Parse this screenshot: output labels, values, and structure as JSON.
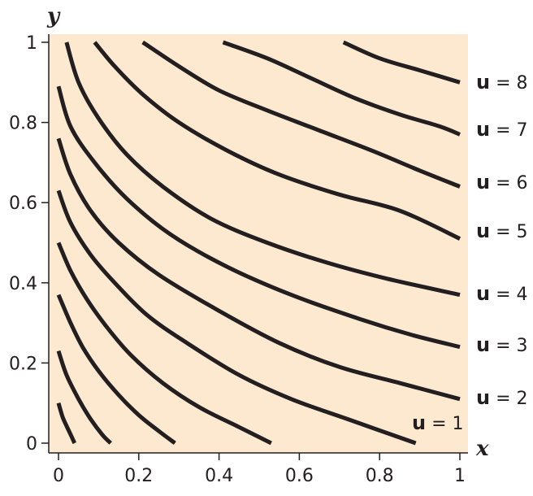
{
  "chart_data": {
    "type": "line",
    "title": "",
    "xlabel": "x",
    "ylabel": "y",
    "xlim": [
      0,
      1
    ],
    "ylim": [
      0,
      1
    ],
    "x_ticks": [
      "0",
      "0.2",
      "0.4",
      "0.6",
      "0.8",
      "1"
    ],
    "y_ticks": [
      "0",
      "0.2",
      "0.4",
      "0.6",
      "0.8",
      "1"
    ],
    "background": "#fde9cf",
    "line_color": "#231f20",
    "grid": false,
    "series": [
      {
        "label_var": "u",
        "label_eq": "= 1",
        "x": [
          0.0,
          0.01,
          0.02,
          0.03,
          0.04
        ],
        "y": [
          0.1,
          0.066,
          0.043,
          0.022,
          0.0
        ]
      },
      {
        "label_var": "u",
        "label_eq": "= 2",
        "x": [
          0.0,
          0.02,
          0.05,
          0.08,
          0.11,
          0.13
        ],
        "y": [
          0.23,
          0.17,
          0.11,
          0.06,
          0.02,
          0.0
        ]
      },
      {
        "label_var": "u",
        "label_eq": "= 3",
        "x": [
          0.0,
          0.03,
          0.06,
          0.1,
          0.15,
          0.2,
          0.25,
          0.29
        ],
        "y": [
          0.37,
          0.3,
          0.24,
          0.18,
          0.12,
          0.07,
          0.03,
          0.0
        ]
      },
      {
        "label_var": "u",
        "label_eq": "= 4",
        "x": [
          0.0,
          0.03,
          0.07,
          0.12,
          0.18,
          0.26,
          0.35,
          0.45,
          0.53
        ],
        "y": [
          0.5,
          0.43,
          0.36,
          0.29,
          0.22,
          0.15,
          0.09,
          0.04,
          0.0
        ]
      },
      {
        "label_var": "u",
        "label_eq": "= 5",
        "x": [
          0.0,
          0.03,
          0.08,
          0.14,
          0.22,
          0.32,
          0.45,
          0.58,
          0.72,
          0.89
        ],
        "y": [
          0.63,
          0.55,
          0.47,
          0.4,
          0.32,
          0.25,
          0.17,
          0.11,
          0.06,
          0.0
        ]
      },
      {
        "label_var": "u",
        "label_eq": "= 6",
        "x": [
          0.0,
          0.03,
          0.08,
          0.15,
          0.25,
          0.4,
          0.55,
          0.7,
          0.85,
          1.0
        ],
        "y": [
          0.76,
          0.67,
          0.58,
          0.5,
          0.42,
          0.33,
          0.25,
          0.19,
          0.15,
          0.11
        ]
      },
      {
        "label_var": "u",
        "label_eq": "= 7",
        "x": [
          0.0,
          0.03,
          0.09,
          0.17,
          0.28,
          0.42,
          0.58,
          0.75,
          0.88,
          1.0
        ],
        "y": [
          0.89,
          0.79,
          0.7,
          0.61,
          0.52,
          0.44,
          0.37,
          0.31,
          0.27,
          0.24
        ]
      },
      {
        "label_var": "u",
        "label_eq": "= 8",
        "x": [
          0.02,
          0.05,
          0.1,
          0.17,
          0.26,
          0.38,
          0.52,
          0.67,
          0.82,
          1.0
        ],
        "y": [
          1.0,
          0.9,
          0.81,
          0.72,
          0.64,
          0.56,
          0.5,
          0.45,
          0.41,
          0.37
        ]
      },
      {
        "x": [
          0.09,
          0.14,
          0.21,
          0.3,
          0.42,
          0.55,
          0.7,
          0.85,
          1.0
        ],
        "y": [
          1.0,
          0.94,
          0.87,
          0.8,
          0.73,
          0.67,
          0.62,
          0.58,
          0.51
        ]
      },
      {
        "x": [
          0.21,
          0.3,
          0.4,
          0.52,
          0.65,
          0.78,
          0.9,
          1.0
        ],
        "y": [
          1.0,
          0.94,
          0.88,
          0.83,
          0.78,
          0.73,
          0.68,
          0.64
        ]
      },
      {
        "x": [
          0.41,
          0.52,
          0.63,
          0.74,
          0.85,
          0.95,
          1.0
        ],
        "y": [
          1.0,
          0.96,
          0.91,
          0.86,
          0.82,
          0.79,
          0.77
        ]
      },
      {
        "x": [
          0.71,
          0.8,
          0.9,
          1.0
        ],
        "y": [
          1.0,
          0.96,
          0.93,
          0.9
        ]
      }
    ],
    "curve_labels": [
      {
        "var": "u",
        "eq": "= 8"
      },
      {
        "var": "u",
        "eq": "= 7"
      },
      {
        "var": "u",
        "eq": "= 6"
      },
      {
        "var": "u",
        "eq": "= 5"
      },
      {
        "var": "u",
        "eq": "= 4"
      },
      {
        "var": "u",
        "eq": "= 3"
      },
      {
        "var": "u",
        "eq": "= 2"
      },
      {
        "var": "u",
        "eq": "= 1"
      }
    ]
  }
}
